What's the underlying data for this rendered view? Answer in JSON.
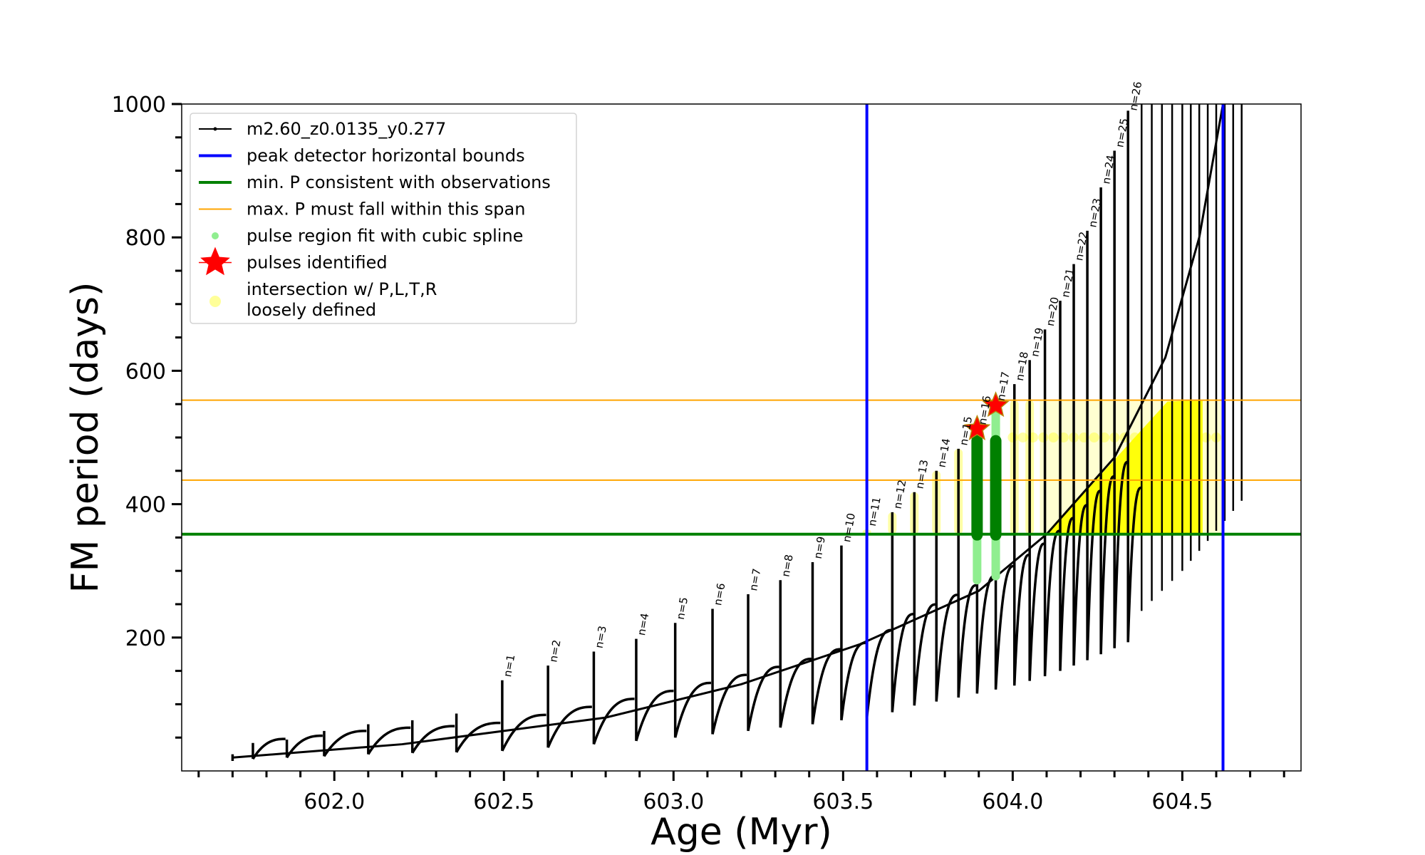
{
  "chart_data": {
    "type": "scatter",
    "title": "",
    "xlabel": "Age (Myr)",
    "ylabel": "FM period (days)",
    "xlim": [
      601.55,
      604.85
    ],
    "ylim": [
      0,
      1000
    ],
    "xticks": [
      602.0,
      602.5,
      603.0,
      603.5,
      604.0,
      604.5
    ],
    "xtick_labels": [
      "602.0",
      "602.5",
      "603.0",
      "603.5",
      "604.0",
      "604.5"
    ],
    "yticks": [
      200,
      400,
      600,
      800,
      1000
    ],
    "ytick_labels": [
      "200",
      "400",
      "600",
      "800",
      "1000"
    ],
    "grid": false,
    "legend_position": "top-left",
    "legend": [
      {
        "key": "track",
        "label": "m2.60_z0.0135_y0.277",
        "color": "#000000"
      },
      {
        "key": "vbounds",
        "label": "peak detector horizontal bounds",
        "color": "#0000ff"
      },
      {
        "key": "minP",
        "label": "min. P consistent with observations",
        "color": "#008000"
      },
      {
        "key": "maxP",
        "label": "max. P must fall within this span",
        "color": "#ffa500"
      },
      {
        "key": "spline",
        "label": "pulse region fit with cubic spline",
        "color": "#90ee90"
      },
      {
        "key": "pulses",
        "label": "pulses identified",
        "color": "#ff0000"
      },
      {
        "key": "loose",
        "label": "intersection w/ P,L,T,R",
        "label2": "loosely defined",
        "color": "#ffff00"
      }
    ],
    "vertical_lines": {
      "x": [
        603.57,
        604.62
      ],
      "color": "#0000ff"
    },
    "min_period_line": {
      "y": 355,
      "color": "#008000"
    },
    "max_period_span": {
      "y": [
        436,
        556
      ],
      "color": "#ffa500"
    },
    "pulses": [
      {
        "n": 1,
        "age": 602.495,
        "peak": 136,
        "trough": 30
      },
      {
        "n": 2,
        "age": 602.63,
        "peak": 158,
        "trough": 35
      },
      {
        "n": 3,
        "age": 602.765,
        "peak": 179,
        "trough": 40
      },
      {
        "n": 4,
        "age": 602.89,
        "peak": 198,
        "trough": 45
      },
      {
        "n": 5,
        "age": 603.005,
        "peak": 222,
        "trough": 50
      },
      {
        "n": 6,
        "age": 603.115,
        "peak": 243,
        "trough": 55
      },
      {
        "n": 7,
        "age": 603.22,
        "peak": 265,
        "trough": 60
      },
      {
        "n": 8,
        "age": 603.315,
        "peak": 286,
        "trough": 65
      },
      {
        "n": 9,
        "age": 603.41,
        "peak": 313,
        "trough": 70
      },
      {
        "n": 10,
        "age": 603.495,
        "peak": 338,
        "trough": 76
      },
      {
        "n": 11,
        "age": 603.57,
        "peak": 362,
        "trough": 80
      },
      {
        "n": 12,
        "age": 603.645,
        "peak": 388,
        "trough": 88
      },
      {
        "n": 13,
        "age": 603.71,
        "peak": 418,
        "trough": 98
      },
      {
        "n": 14,
        "age": 603.775,
        "peak": 450,
        "trough": 104
      },
      {
        "n": 15,
        "age": 603.84,
        "peak": 483,
        "trough": 110
      },
      {
        "n": 16,
        "age": 603.895,
        "peak": 514,
        "trough": 116
      },
      {
        "n": 17,
        "age": 603.95,
        "peak": 550,
        "trough": 122
      },
      {
        "n": 18,
        "age": 604.005,
        "peak": 580,
        "trough": 128
      },
      {
        "n": 19,
        "age": 604.05,
        "peak": 616,
        "trough": 135
      },
      {
        "n": 20,
        "age": 604.095,
        "peak": 662,
        "trough": 142
      },
      {
        "n": 21,
        "age": 604.14,
        "peak": 705,
        "trough": 150
      },
      {
        "n": 22,
        "age": 604.18,
        "peak": 760,
        "trough": 158
      },
      {
        "n": 23,
        "age": 604.22,
        "peak": 810,
        "trough": 166
      },
      {
        "n": 24,
        "age": 604.26,
        "peak": 875,
        "trough": 175
      },
      {
        "n": 25,
        "age": 604.3,
        "peak": 930,
        "trough": 184
      },
      {
        "n": 26,
        "age": 604.34,
        "peak": 990,
        "trough": 193
      }
    ],
    "early_pulses": [
      {
        "age": 601.76,
        "peak": 42,
        "trough": 18
      },
      {
        "age": 601.86,
        "peak": 47,
        "trough": 20
      },
      {
        "age": 601.97,
        "peak": 60,
        "trough": 22
      },
      {
        "age": 602.1,
        "peak": 70,
        "trough": 25
      },
      {
        "age": 602.23,
        "peak": 76,
        "trough": 27
      },
      {
        "age": 602.36,
        "peak": 86,
        "trough": 28
      }
    ],
    "late_pulses": [
      {
        "age": 604.38,
        "peak": 1000
      },
      {
        "age": 604.41,
        "peak": 1000
      },
      {
        "age": 604.44,
        "peak": 1000
      },
      {
        "age": 604.47,
        "peak": 1000
      },
      {
        "age": 604.5,
        "peak": 1000
      },
      {
        "age": 604.525,
        "peak": 1000
      },
      {
        "age": 604.55,
        "peak": 1000
      },
      {
        "age": 604.575,
        "peak": 1000
      },
      {
        "age": 604.6,
        "peak": 1000
      },
      {
        "age": 604.625,
        "peak": 1000
      },
      {
        "age": 604.65,
        "peak": 1000
      },
      {
        "age": 604.675,
        "peak": 1000
      }
    ],
    "identified_pulses": [
      {
        "n": 16,
        "age": 603.895,
        "period": 513,
        "spline_range": [
          286,
          512
        ],
        "fit_range": [
          354,
          495
        ]
      },
      {
        "n": 17,
        "age": 603.95,
        "period": 548,
        "spline_range": [
          292,
          548
        ],
        "fit_range": [
          354,
          495
        ]
      }
    ],
    "envelope": [
      {
        "age": 601.7,
        "period": 20
      },
      {
        "age": 602.2,
        "period": 40
      },
      {
        "age": 602.8,
        "period": 80
      },
      {
        "age": 603.2,
        "period": 130
      },
      {
        "age": 603.55,
        "period": 190
      },
      {
        "age": 603.9,
        "period": 270
      },
      {
        "age": 604.1,
        "period": 355
      },
      {
        "age": 604.3,
        "period": 470
      },
      {
        "age": 604.45,
        "period": 620
      },
      {
        "age": 604.55,
        "period": 800
      },
      {
        "age": 604.62,
        "period": 1000
      }
    ],
    "loose_region": {
      "age_range": [
        604.1,
        604.62
      ],
      "period_range": [
        355,
        556
      ],
      "base_period": 355
    }
  }
}
